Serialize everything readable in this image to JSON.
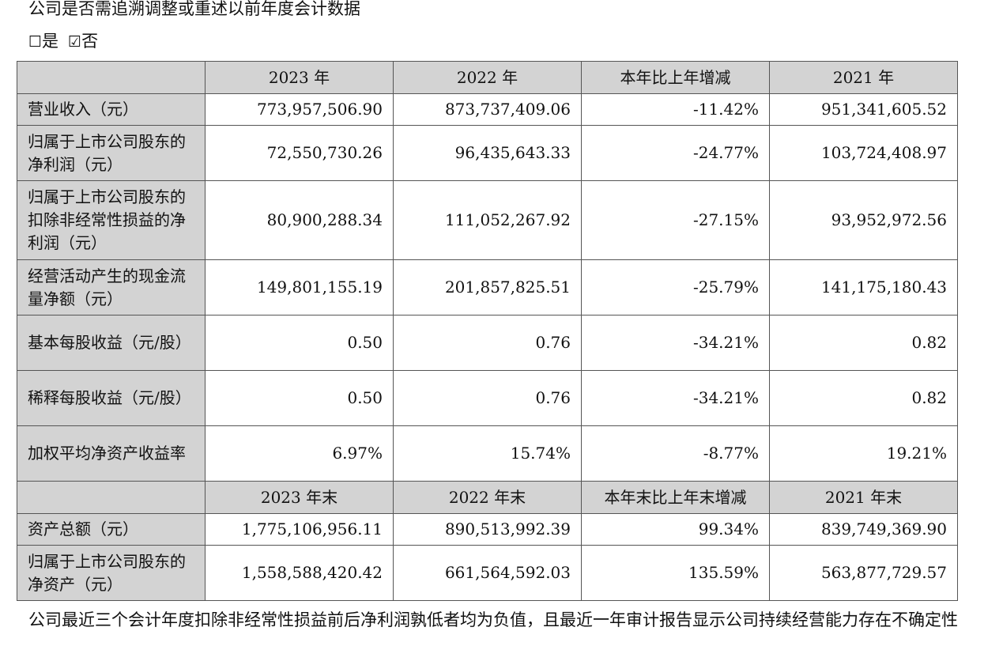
{
  "question": "公司是否需追溯调整或重述以前年度会计数据",
  "options": {
    "yes_box": "☐",
    "yes_label": "是",
    "no_box": "☑",
    "no_label": "否"
  },
  "table": {
    "header_annual": [
      "2023 年",
      "2022 年",
      "本年比上年增减",
      "2021 年"
    ],
    "annual_rows": [
      {
        "label": "营业收入（元）",
        "values": [
          "773,957,506.90",
          "873,737,409.06",
          "-11.42%",
          "951,341,605.52"
        ]
      },
      {
        "label": "归属于上市公司股东的净利润（元）",
        "values": [
          "72,550,730.26",
          "96,435,643.33",
          "-24.77%",
          "103,724,408.97"
        ]
      },
      {
        "label": "归属于上市公司股东的扣除非经常性损益的净利润（元）",
        "values": [
          "80,900,288.34",
          "111,052,267.92",
          "-27.15%",
          "93,952,972.56"
        ]
      },
      {
        "label": "经营活动产生的现金流量净额（元）",
        "values": [
          "149,801,155.19",
          "201,857,825.51",
          "-25.79%",
          "141,175,180.43"
        ]
      },
      {
        "label": "基本每股收益（元/股）",
        "values": [
          "0.50",
          "0.76",
          "-34.21%",
          "0.82"
        ]
      },
      {
        "label": "稀释每股收益（元/股）",
        "values": [
          "0.50",
          "0.76",
          "-34.21%",
          "0.82"
        ]
      },
      {
        "label": "加权平均净资产收益率",
        "values": [
          "6.97%",
          "15.74%",
          "-8.77%",
          "19.21%"
        ]
      }
    ],
    "header_yearend": [
      "2023 年末",
      "2022 年末",
      "本年末比上年末增减",
      "2021 年末"
    ],
    "yearend_rows": [
      {
        "label": "资产总额（元）",
        "values": [
          "1,775,106,956.11",
          "890,513,992.39",
          "99.34%",
          "839,749,369.90"
        ]
      },
      {
        "label": "归属于上市公司股东的净资产（元）",
        "values": [
          "1,558,588,420.42",
          "661,564,592.03",
          "135.59%",
          "563,877,729.57"
        ]
      }
    ]
  },
  "footnote": "公司最近三个会计年度扣除非经常性损益前后净利润孰低者均为负值，且最近一年审计报告显示公司持续经营能力存在不确定性"
}
